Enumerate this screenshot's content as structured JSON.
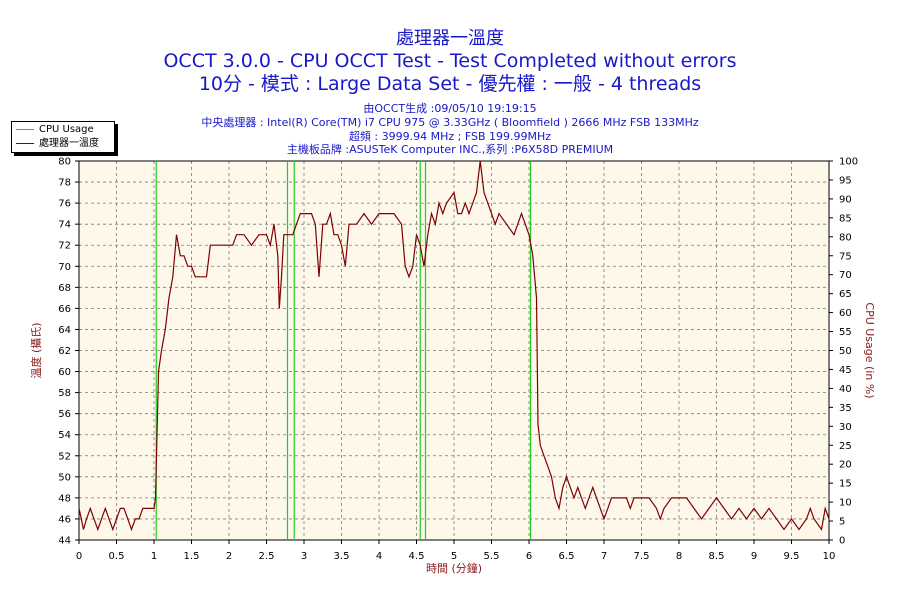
{
  "header": {
    "title1": "處理器一溫度",
    "title2": "OCCT 3.0.0 - CPU OCCT Test - Test Completed without errors",
    "title3": "10分 - 模式 : Large Data Set - 優先權 : 一般 - 4 threads",
    "info1": "由OCCT生成 :09/05/10 19:19:15",
    "info2": "中央處理器 : Intel(R) Core(TM) i7 CPU 975 @ 3.33GHz ( Bloomfield ) 2666 MHz FSB 133MHz",
    "info3": "超頻 : 3999.94 MHz ; FSB 199.99MHz",
    "info4": "主機板品牌 :ASUSTeK Computer INC.,系列 :P6X58D PREMIUM"
  },
  "legend": {
    "items": [
      {
        "label": "CPU Usage",
        "color": "#22cc22"
      },
      {
        "label": "處理器一溫度",
        "color": "#800000"
      }
    ]
  },
  "colors": {
    "plot_bg": "#fdf8ea",
    "temp": "#800000",
    "usage": "#22cc22",
    "grid": "#7a7a7a",
    "title": "#1818c8",
    "axis_label": "#8b1a1a"
  },
  "chart_data": {
    "type": "line",
    "xlabel": "時間 (分鐘)",
    "ylabel_left": "溫度 (攝氏)",
    "ylabel_right": "CPU Usage (in %)",
    "xlim": [
      0,
      10
    ],
    "ylim_left": [
      44,
      80
    ],
    "ylim_right": [
      0,
      100
    ],
    "x_ticks": [
      "0",
      "0.5",
      "1",
      "1.5",
      "2",
      "2.5",
      "3",
      "3.5",
      "4",
      "4.5",
      "5",
      "5.5",
      "6",
      "6.5",
      "7",
      "7.5",
      "8",
      "8.5",
      "9",
      "9.5",
      "10"
    ],
    "y_left_ticks": [
      "44",
      "46",
      "48",
      "50",
      "52",
      "54",
      "56",
      "58",
      "60",
      "62",
      "64",
      "66",
      "68",
      "70",
      "72",
      "74",
      "76",
      "78",
      "80"
    ],
    "y_right_ticks": [
      "0",
      "5",
      "10",
      "15",
      "20",
      "25",
      "30",
      "35",
      "40",
      "45",
      "50",
      "55",
      "60",
      "65",
      "70",
      "75",
      "80",
      "85",
      "90",
      "95",
      "100"
    ],
    "grid": true,
    "legend_position": "top-left",
    "series": [
      {
        "name": "處理器一溫度",
        "axis": "left",
        "points": [
          [
            0,
            47
          ],
          [
            0.03,
            46
          ],
          [
            0.06,
            45
          ],
          [
            0.1,
            46
          ],
          [
            0.15,
            47
          ],
          [
            0.2,
            46
          ],
          [
            0.25,
            45
          ],
          [
            0.3,
            46
          ],
          [
            0.35,
            47
          ],
          [
            0.4,
            46
          ],
          [
            0.45,
            45
          ],
          [
            0.5,
            46
          ],
          [
            0.55,
            47
          ],
          [
            0.6,
            47
          ],
          [
            0.65,
            46
          ],
          [
            0.7,
            45
          ],
          [
            0.75,
            46
          ],
          [
            0.8,
            46
          ],
          [
            0.85,
            47
          ],
          [
            0.9,
            47
          ],
          [
            0.95,
            47
          ],
          [
            1.0,
            47
          ],
          [
            1.02,
            48
          ],
          [
            1.04,
            54
          ],
          [
            1.06,
            60
          ],
          [
            1.1,
            62
          ],
          [
            1.15,
            64
          ],
          [
            1.2,
            67
          ],
          [
            1.25,
            69
          ],
          [
            1.3,
            73
          ],
          [
            1.35,
            71
          ],
          [
            1.4,
            71
          ],
          [
            1.45,
            70
          ],
          [
            1.5,
            70
          ],
          [
            1.55,
            69
          ],
          [
            1.6,
            69
          ],
          [
            1.7,
            69
          ],
          [
            1.75,
            72
          ],
          [
            1.85,
            72
          ],
          [
            2.0,
            72
          ],
          [
            2.05,
            72
          ],
          [
            2.1,
            73
          ],
          [
            2.2,
            73
          ],
          [
            2.3,
            72
          ],
          [
            2.4,
            73
          ],
          [
            2.5,
            73
          ],
          [
            2.55,
            72
          ],
          [
            2.6,
            74
          ],
          [
            2.65,
            71
          ],
          [
            2.67,
            66
          ],
          [
            2.7,
            69
          ],
          [
            2.73,
            73
          ],
          [
            2.8,
            73
          ],
          [
            2.85,
            73
          ],
          [
            2.9,
            74
          ],
          [
            2.95,
            75
          ],
          [
            3.0,
            75
          ],
          [
            3.1,
            75
          ],
          [
            3.15,
            74
          ],
          [
            3.2,
            69
          ],
          [
            3.25,
            74
          ],
          [
            3.3,
            74
          ],
          [
            3.35,
            75
          ],
          [
            3.4,
            73
          ],
          [
            3.45,
            73
          ],
          [
            3.5,
            72
          ],
          [
            3.55,
            70
          ],
          [
            3.6,
            74
          ],
          [
            3.7,
            74
          ],
          [
            3.8,
            75
          ],
          [
            3.9,
            74
          ],
          [
            4.0,
            75
          ],
          [
            4.1,
            75
          ],
          [
            4.2,
            75
          ],
          [
            4.3,
            74
          ],
          [
            4.35,
            70
          ],
          [
            4.4,
            69
          ],
          [
            4.45,
            70
          ],
          [
            4.5,
            73
          ],
          [
            4.55,
            72
          ],
          [
            4.6,
            70
          ],
          [
            4.65,
            73
          ],
          [
            4.7,
            75
          ],
          [
            4.75,
            74
          ],
          [
            4.8,
            76
          ],
          [
            4.85,
            75
          ],
          [
            4.9,
            76
          ],
          [
            5.0,
            77
          ],
          [
            5.05,
            75
          ],
          [
            5.1,
            75
          ],
          [
            5.15,
            76
          ],
          [
            5.2,
            75
          ],
          [
            5.3,
            77
          ],
          [
            5.35,
            80
          ],
          [
            5.4,
            77
          ],
          [
            5.45,
            76
          ],
          [
            5.5,
            75
          ],
          [
            5.55,
            74
          ],
          [
            5.6,
            75
          ],
          [
            5.7,
            74
          ],
          [
            5.8,
            73
          ],
          [
            5.9,
            75
          ],
          [
            6.0,
            73
          ],
          [
            6.05,
            71
          ],
          [
            6.1,
            67
          ],
          [
            6.12,
            55
          ],
          [
            6.15,
            53
          ],
          [
            6.2,
            52
          ],
          [
            6.25,
            51
          ],
          [
            6.3,
            50
          ],
          [
            6.35,
            48
          ],
          [
            6.4,
            47
          ],
          [
            6.45,
            49
          ],
          [
            6.5,
            50
          ],
          [
            6.55,
            49
          ],
          [
            6.6,
            48
          ],
          [
            6.65,
            49
          ],
          [
            6.7,
            48
          ],
          [
            6.75,
            47
          ],
          [
            6.8,
            48
          ],
          [
            6.85,
            49
          ],
          [
            6.9,
            48
          ],
          [
            6.95,
            47
          ],
          [
            7.0,
            46
          ],
          [
            7.05,
            47
          ],
          [
            7.1,
            48
          ],
          [
            7.2,
            48
          ],
          [
            7.3,
            48
          ],
          [
            7.35,
            47
          ],
          [
            7.4,
            48
          ],
          [
            7.5,
            48
          ],
          [
            7.6,
            48
          ],
          [
            7.7,
            47
          ],
          [
            7.75,
            46
          ],
          [
            7.8,
            47
          ],
          [
            7.9,
            48
          ],
          [
            8.0,
            48
          ],
          [
            8.1,
            48
          ],
          [
            8.2,
            47
          ],
          [
            8.3,
            46
          ],
          [
            8.4,
            47
          ],
          [
            8.5,
            48
          ],
          [
            8.6,
            47
          ],
          [
            8.7,
            46
          ],
          [
            8.8,
            47
          ],
          [
            8.9,
            46
          ],
          [
            9.0,
            47
          ],
          [
            9.1,
            46
          ],
          [
            9.2,
            47
          ],
          [
            9.3,
            46
          ],
          [
            9.4,
            45
          ],
          [
            9.5,
            46
          ],
          [
            9.6,
            45
          ],
          [
            9.7,
            46
          ],
          [
            9.75,
            47
          ],
          [
            9.8,
            46
          ],
          [
            9.9,
            45
          ],
          [
            9.95,
            47
          ],
          [
            10.0,
            46
          ]
        ]
      },
      {
        "name": "CPU Usage",
        "axis": "right",
        "spikes_at_x": [
          1.03,
          2.78,
          2.87,
          4.55,
          4.62,
          6.02
        ]
      }
    ]
  }
}
